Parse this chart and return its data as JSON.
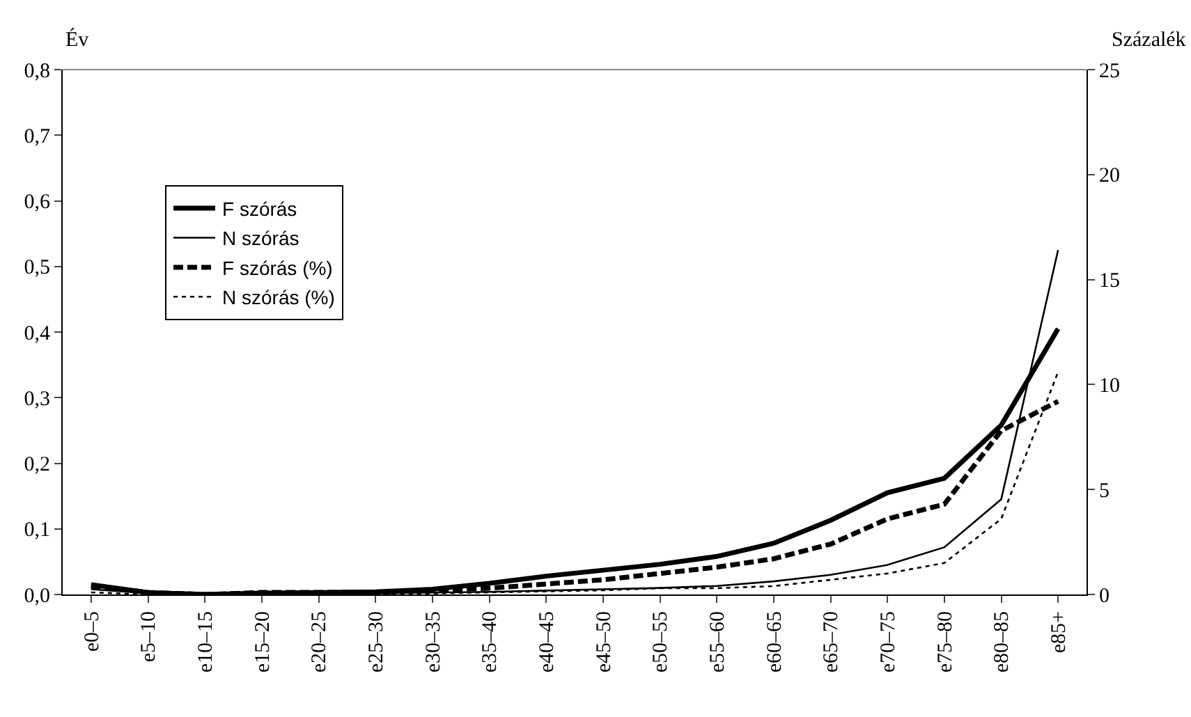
{
  "chart_data": {
    "type": "line",
    "ylabel": "Év",
    "y2label": "Százalék",
    "categories": [
      "e0–5",
      "e5–10",
      "e10–15",
      "e15–20",
      "e20–25",
      "e25–30",
      "e30–35",
      "e35–40",
      "e40–45",
      "e45–50",
      "e50–55",
      "e55–60",
      "e60–65",
      "e65–70",
      "e70–75",
      "e75–80",
      "e80–85",
      "e85+"
    ],
    "series": [
      {
        "name": "F szórás",
        "color": "#000000",
        "line_style": "solid",
        "values": [
          0.015,
          0.003,
          0.0,
          0.002,
          0.003,
          0.004,
          0.008,
          0.017,
          0.028,
          0.037,
          0.046,
          0.058,
          0.078,
          0.113,
          0.155,
          0.177,
          0.258,
          0.405
        ]
      },
      {
        "name": "N szórás",
        "color": "#000000",
        "line_style": "solid",
        "values": [
          0.008,
          0.002,
          0.001,
          0.001,
          0.001,
          0.002,
          0.003,
          0.004,
          0.006,
          0.008,
          0.01,
          0.013,
          0.02,
          0.03,
          0.045,
          0.072,
          0.145,
          0.525
        ]
      },
      {
        "name": "F szórás (%)",
        "color": "#000000",
        "line_style": "dashed",
        "axis": "y2",
        "values": [
          0.4,
          0.1,
          0.0,
          0.1,
          0.1,
          0.1,
          0.2,
          0.3,
          0.5,
          0.7,
          1.0,
          1.3,
          1.7,
          2.4,
          3.6,
          4.3,
          7.8,
          9.2
        ]
      },
      {
        "name": "N szórás (%)",
        "color": "#000000",
        "line_style": "dotted",
        "axis": "y2",
        "values": [
          0.1,
          0.0,
          0.0,
          0.0,
          0.0,
          0.0,
          0.05,
          0.1,
          0.15,
          0.2,
          0.3,
          0.3,
          0.4,
          0.7,
          1.0,
          1.5,
          3.6,
          10.6
        ]
      }
    ],
    "ylim": [
      0,
      0.8
    ],
    "yticks": [
      {
        "value": 0,
        "label": "0,0"
      },
      {
        "value": 0.1,
        "label": "0,1"
      },
      {
        "value": 0.2,
        "label": "0,2"
      },
      {
        "value": 0.3,
        "label": "0,3"
      },
      {
        "value": 0.4,
        "label": "0,4"
      },
      {
        "value": 0.5,
        "label": "0,5"
      },
      {
        "value": 0.6,
        "label": "0,6"
      },
      {
        "value": 0.7,
        "label": "0,7"
      },
      {
        "value": 0.8,
        "label": "0,8"
      }
    ],
    "y2lim": [
      0,
      25
    ],
    "y2ticks": [
      0,
      5,
      10,
      15,
      20,
      25
    ],
    "legend": "top left",
    "marker": "none"
  }
}
